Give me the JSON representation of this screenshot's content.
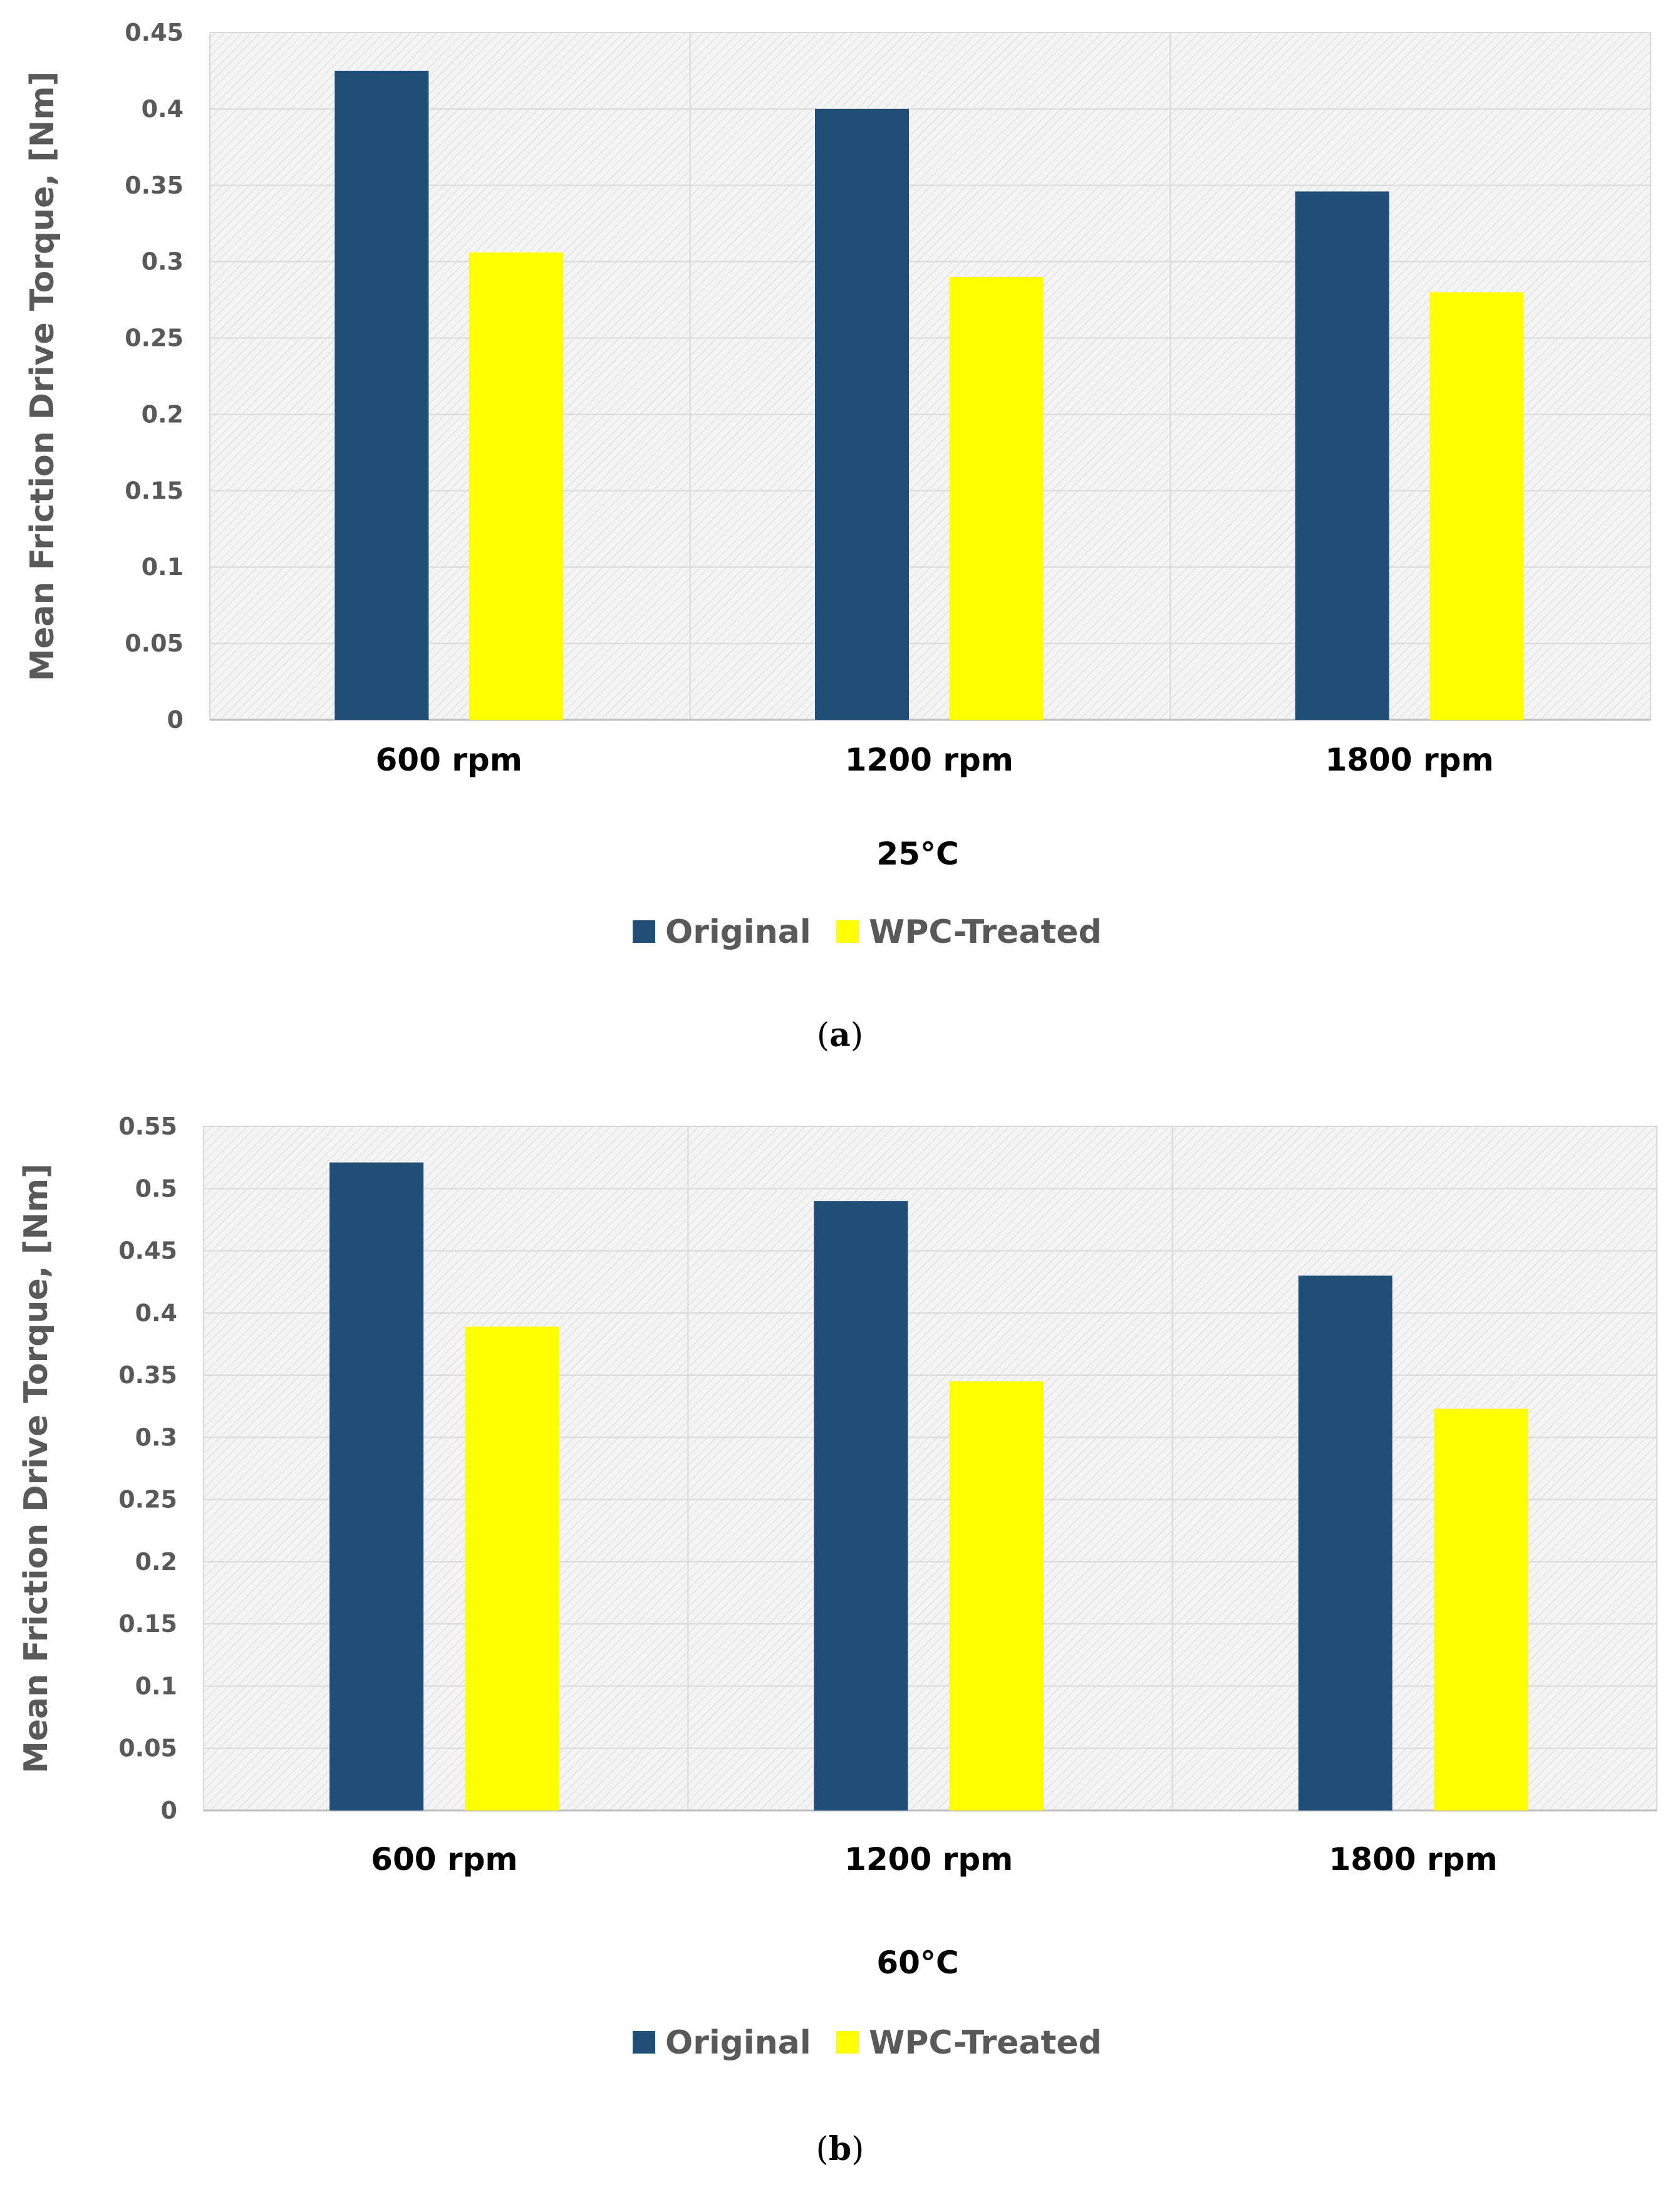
{
  "colors": {
    "original": "#1f4e79",
    "treated": "#ffff00",
    "grid": "#d9d9d9",
    "axis_text": "#595959",
    "plot_bg": "#f2f2f2"
  },
  "chart_data": [
    {
      "type": "bar",
      "panel": "a",
      "caption_letter": "a",
      "xlabel": "25°C",
      "ylabel": "Mean Friction Drive Torque, [Nm]",
      "categories": [
        "600 rpm",
        "1200 rpm",
        "1800 rpm"
      ],
      "ylim": [
        0,
        0.45
      ],
      "yticks": [
        0,
        0.05,
        0.1,
        0.15,
        0.2,
        0.25,
        0.3,
        0.35,
        0.4,
        0.45
      ],
      "ytick_labels": [
        "0",
        "0.05",
        "0.1",
        "0.15",
        "0.2",
        "0.25",
        "0.3",
        "0.35",
        "0.4",
        "0.45"
      ],
      "series": [
        {
          "name": "Original",
          "values": [
            0.425,
            0.4,
            0.346
          ]
        },
        {
          "name": "WPC-Treated",
          "values": [
            0.306,
            0.29,
            0.28
          ]
        }
      ],
      "legend_position": "bottom"
    },
    {
      "type": "bar",
      "panel": "b",
      "caption_letter": "b",
      "xlabel": "60°C",
      "ylabel": "Mean Friction Drive Torque, [Nm]",
      "categories": [
        "600 rpm",
        "1200 rpm",
        "1800 rpm"
      ],
      "ylim": [
        0,
        0.55
      ],
      "yticks": [
        0,
        0.05,
        0.1,
        0.15,
        0.2,
        0.25,
        0.3,
        0.35,
        0.4,
        0.45,
        0.5,
        0.55
      ],
      "ytick_labels": [
        "0",
        "0.05",
        "0.1",
        "0.15",
        "0.2",
        "0.25",
        "0.3",
        "0.35",
        "0.4",
        "0.45",
        "0.5",
        "0.55"
      ],
      "series": [
        {
          "name": "Original",
          "values": [
            0.521,
            0.49,
            0.43
          ]
        },
        {
          "name": "WPC-Treated",
          "values": [
            0.389,
            0.345,
            0.323
          ]
        }
      ],
      "legend_position": "bottom"
    }
  ]
}
